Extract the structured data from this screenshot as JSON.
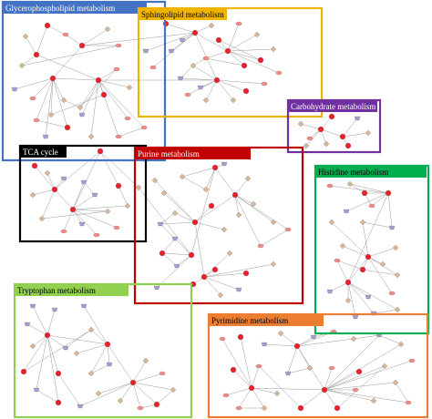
{
  "modules": [
    {
      "name": "Glycerophospholipid metabolism",
      "color": "#4472c4",
      "label_text_color": "#ffffff"
    },
    {
      "name": "Sphingolipid metabolism",
      "color": "#f0b400",
      "label_text_color": "#000000"
    },
    {
      "name": "Carbohydrate metabolism",
      "color": "#7030a0",
      "label_text_color": "#ffffff"
    },
    {
      "name": "TCA cycle",
      "color": "#000000",
      "label_text_color": "#ffffff"
    },
    {
      "name": "Purine metabolism",
      "color": "#c00000",
      "label_text_color": "#ffffff"
    },
    {
      "name": "Histidine metabolism",
      "color": "#00b050",
      "label_text_color": "#000000"
    },
    {
      "name": "Tryptophan metabolism",
      "color": "#92d050",
      "label_text_color": "#000000"
    },
    {
      "name": "Pyrimidine metabolism",
      "color": "#ed7d31",
      "label_text_color": "#000000"
    }
  ],
  "node_colors": {
    "metabolite": "#e8202a",
    "gene": "#d4b89a",
    "protein": "#a99ad6",
    "small": "#f08a8a",
    "edge": "#9a9a9a"
  }
}
